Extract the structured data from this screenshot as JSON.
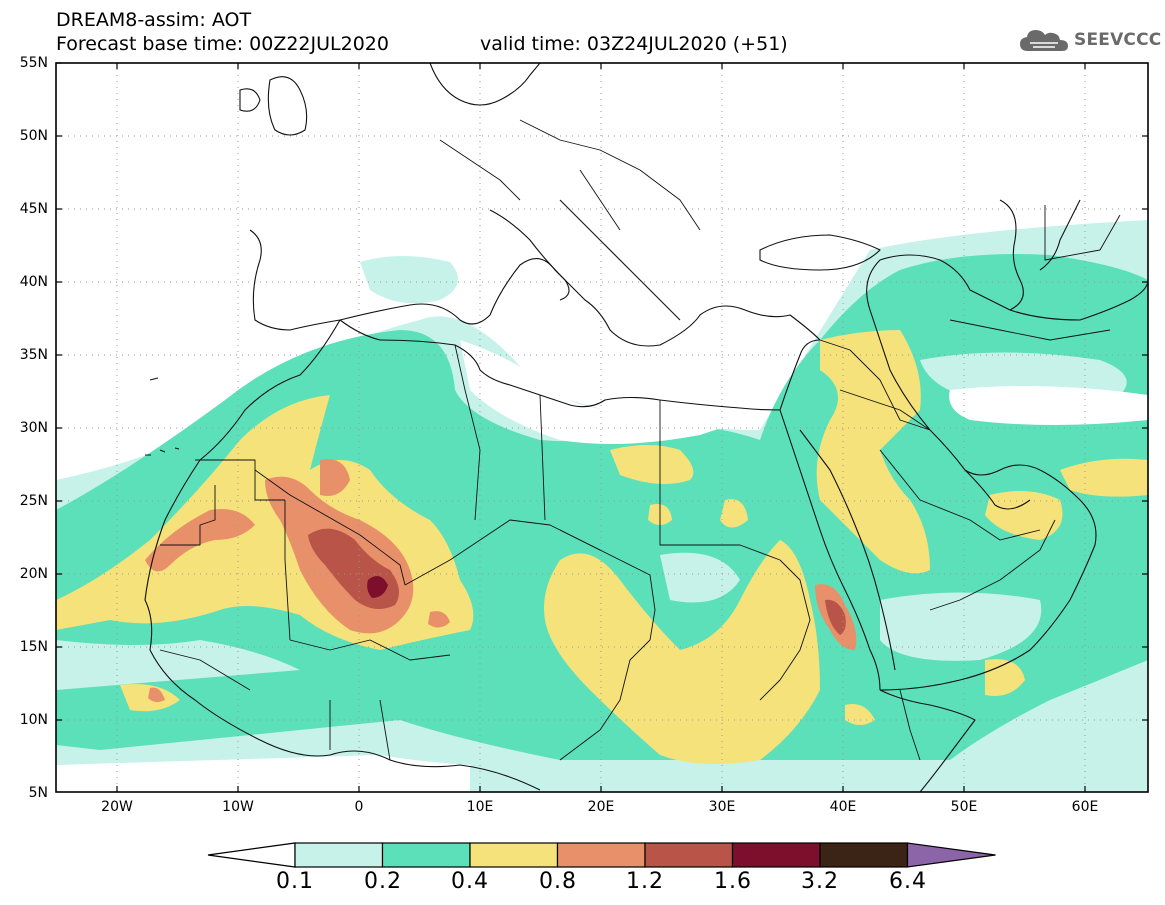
{
  "header": {
    "title_line": "DREAM8-assim: AOT",
    "base_time": "Forecast base time: 00Z22JUL2020",
    "valid_time": "valid time: 03Z24JUL2020 (+51)",
    "logo_text": "SEEVCCC",
    "logo_icon": "cloud-icon"
  },
  "map": {
    "lon_range": [
      -25,
      65
    ],
    "lat_range": [
      5,
      55
    ],
    "lat_labels": [
      "55N",
      "50N",
      "45N",
      "40N",
      "35N",
      "30N",
      "25N",
      "20N",
      "15N",
      "10N",
      "5N"
    ],
    "lon_labels": [
      "20W",
      "10W",
      "0",
      "10E",
      "20E",
      "30E",
      "40E",
      "50E",
      "60E"
    ],
    "grid": "dotted"
  },
  "colorbar": {
    "labels": [
      "0.1",
      "0.2",
      "0.4",
      "0.8",
      "1.2",
      "1.6",
      "3.2",
      "6.4"
    ],
    "colors": [
      "#ffffff",
      "#c6f2ea",
      "#5ce0b9",
      "#f5e27a",
      "#e8906a",
      "#b85548",
      "#7d0f2c",
      "#3b2316",
      "#8b65a8"
    ]
  }
}
